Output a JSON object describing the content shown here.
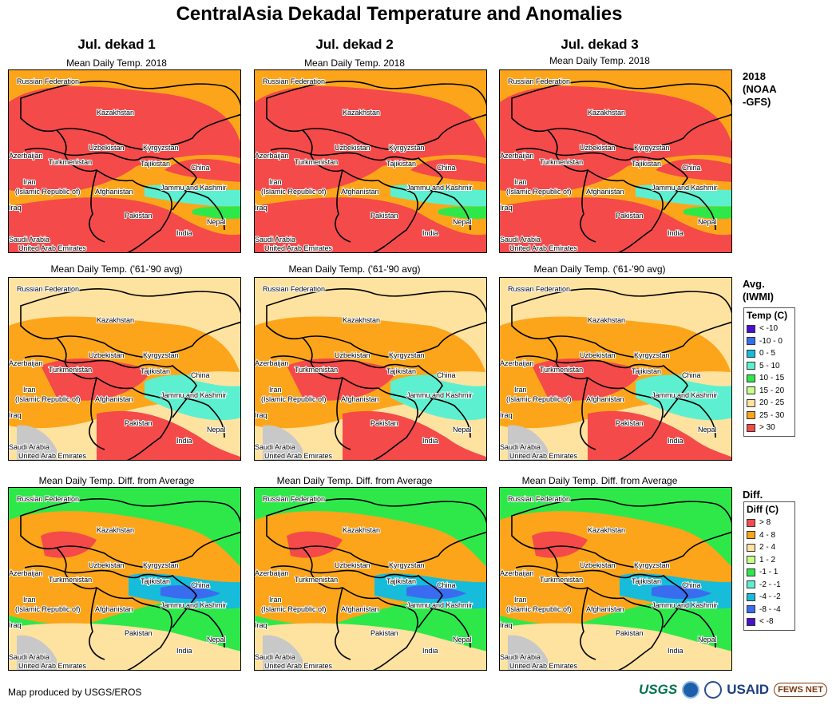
{
  "title": "CentralAsia Dekadal Temperature and Anomalies",
  "columns": [
    "Jul. dekad 1",
    "Jul. dekad 2",
    "Jul. dekad 3"
  ],
  "row_titles": {
    "year": "Mean Daily Temp. 2018",
    "avg": "Mean Daily Temp. ('61-'90 avg)",
    "diff": "Mean Daily Temp. Diff. from Average"
  },
  "row_tags": {
    "year": [
      "2018",
      "(NOAA",
      "-GFS)"
    ],
    "avg": [
      "Avg.",
      "(IWMI)"
    ],
    "diff": [
      "Diff."
    ]
  },
  "map_labels": {
    "russia": "Russian Federation",
    "kazakhstan": "Kazakhstan",
    "uzbekistan": "Uzbekistan",
    "kyrgyzstan": "Kyrgyzstan",
    "azerbaijan": "Azerbaijan",
    "turkmenistan": "Turkmenistan",
    "tajikistan": "Tajikistan",
    "china": "China",
    "iran": "Iran",
    "iran2": "(Islamic Republic of)",
    "afghanistan": "Afghanistan",
    "jk": "Jammu and Kashmir",
    "iraq": "Iraq",
    "pakistan": "Pakistan",
    "nepal": "Nepal",
    "india": "India",
    "saudi": "Saudi Arabia",
    "uae": "United Arab Emirates"
  },
  "temp_legend": {
    "title": "Temp (C)",
    "items": [
      {
        "label": "< -10",
        "color": "#4a0fd0"
      },
      {
        "label": "-10 - 0",
        "color": "#3a6cf0"
      },
      {
        "label": "0 - 5",
        "color": "#16bcd9"
      },
      {
        "label": "5 - 10",
        "color": "#5cf0d0"
      },
      {
        "label": "10 - 15",
        "color": "#2ee84a"
      },
      {
        "label": "15 - 20",
        "color": "#c8ff88"
      },
      {
        "label": "20 - 25",
        "color": "#fde2a0"
      },
      {
        "label": "25 - 30",
        "color": "#fca51a"
      },
      {
        "label": "> 30",
        "color": "#f44a4a"
      }
    ]
  },
  "diff_legend": {
    "title": "Diff (C)",
    "items": [
      {
        "label": "> 8",
        "color": "#f44a4a"
      },
      {
        "label": "4 - 8",
        "color": "#fca51a"
      },
      {
        "label": "2 - 4",
        "color": "#fde2a0"
      },
      {
        "label": "1 - 2",
        "color": "#c8ff88"
      },
      {
        "label": "-1 - 1",
        "color": "#2ee84a"
      },
      {
        "label": "-2 - -1",
        "color": "#5cf0d0"
      },
      {
        "label": "-4 - -2",
        "color": "#16bcd9"
      },
      {
        "label": "-8 - -4",
        "color": "#3a6cf0"
      },
      {
        "label": "< -8",
        "color": "#4a0fd0"
      }
    ]
  },
  "footer": "Map produced by USGS/EROS",
  "logos": {
    "usgs": "USGS",
    "usaid": "USAID",
    "fews": "FEWS NET"
  }
}
